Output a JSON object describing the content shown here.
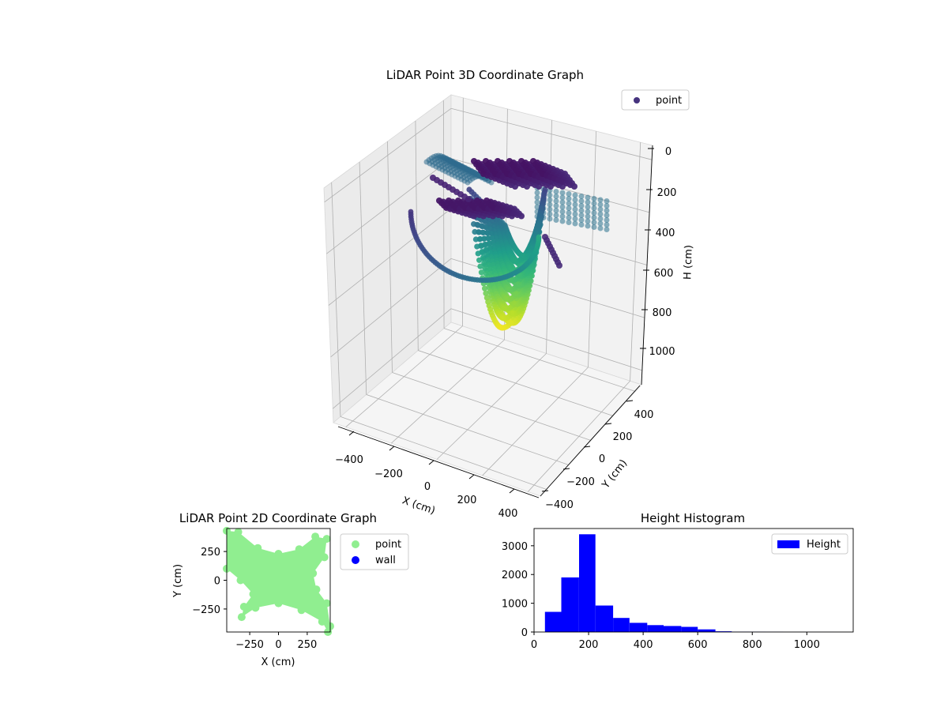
{
  "chart_data": [
    {
      "type": "scatter",
      "title": "LiDAR Point 3D Coordinate Graph",
      "xlabel": "X (cm)",
      "ylabel": "Y (cm)",
      "zlabel": "H (cm)",
      "x_ticks": [
        -400,
        -200,
        0,
        200,
        400
      ],
      "y_ticks": [
        -400,
        -200,
        0,
        200,
        400
      ],
      "z_ticks": [
        0,
        200,
        400,
        600,
        800,
        1000
      ],
      "xlim": [
        -450,
        450
      ],
      "ylim": [
        -450,
        450
      ],
      "zlim": [
        0,
        1100
      ],
      "z_inverted": true,
      "colormap": "viridis",
      "legend": {
        "placement": "upper right",
        "entries": [
          {
            "label": "point",
            "color": "#46337e"
          }
        ]
      },
      "grid": true
    },
    {
      "type": "scatter",
      "title": "LiDAR Point 2D Coordinate Graph",
      "xlabel": "X (cm)",
      "ylabel": "Y (cm)",
      "xlim": [
        -450,
        450
      ],
      "ylim": [
        -450,
        450
      ],
      "x_ticks": [
        -250,
        0,
        250
      ],
      "x_tick_labels": [
        "−250",
        "0",
        "250"
      ],
      "y_ticks": [
        250,
        0,
        -250
      ],
      "y_tick_labels": [
        "250",
        "0",
        "−250"
      ],
      "legend": {
        "placement": "outside right",
        "entries": [
          {
            "label": "point",
            "color": "#90ee90"
          },
          {
            "label": "wall",
            "color": "#0000ff"
          }
        ]
      },
      "series": [
        {
          "name": "point",
          "color": "#90ee90"
        }
      ]
    },
    {
      "type": "bar",
      "title": "Height Histogram",
      "bins": [
        {
          "x0": 40,
          "x1": 100,
          "count": 700
        },
        {
          "x0": 100,
          "x1": 165,
          "count": 1900
        },
        {
          "x0": 165,
          "x1": 225,
          "count": 3400
        },
        {
          "x0": 225,
          "x1": 290,
          "count": 920
        },
        {
          "x0": 290,
          "x1": 350,
          "count": 490
        },
        {
          "x0": 350,
          "x1": 415,
          "count": 320
        },
        {
          "x0": 415,
          "x1": 475,
          "count": 240
        },
        {
          "x0": 475,
          "x1": 540,
          "count": 210
        },
        {
          "x0": 540,
          "x1": 600,
          "count": 180
        },
        {
          "x0": 600,
          "x1": 665,
          "count": 90
        },
        {
          "x0": 665,
          "x1": 725,
          "count": 25
        },
        {
          "x0": 725,
          "x1": 790,
          "count": 12
        },
        {
          "x0": 790,
          "x1": 850,
          "count": 8
        },
        {
          "x0": 850,
          "x1": 915,
          "count": 6
        },
        {
          "x0": 915,
          "x1": 975,
          "count": 4
        },
        {
          "x0": 975,
          "x1": 1040,
          "count": 3
        },
        {
          "x0": 1040,
          "x1": 1100,
          "count": 2
        }
      ],
      "xlim": [
        0,
        1170
      ],
      "ylim": [
        0,
        3600
      ],
      "x_ticks": [
        0,
        200,
        400,
        600,
        800,
        1000
      ],
      "y_ticks": [
        0,
        1000,
        2000,
        3000
      ],
      "bar_color": "#0000ff",
      "legend": {
        "placement": "upper right",
        "entries": [
          {
            "label": "Height",
            "color": "#0000ff"
          }
        ]
      }
    }
  ]
}
